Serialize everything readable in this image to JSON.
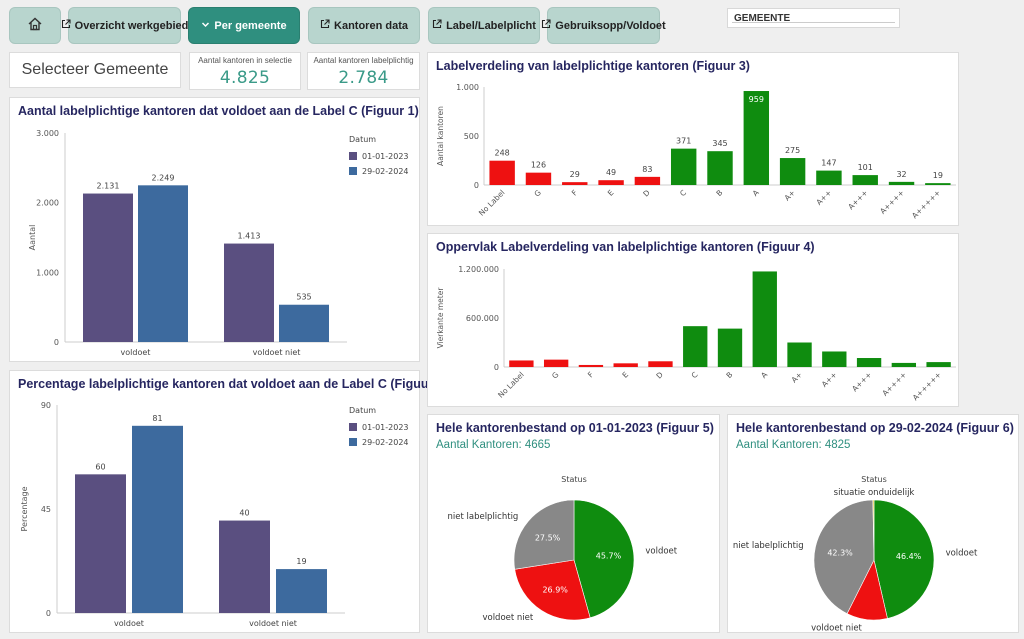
{
  "nav": {
    "buttons": [
      {
        "label": "",
        "icon": "home-icon"
      },
      {
        "label": "Overzicht werkgebied",
        "icon": "external-link-icon"
      },
      {
        "label": "Per gemeente",
        "icon": "chevron-down-icon"
      },
      {
        "label": "Kantoren data",
        "icon": "external-link-icon"
      },
      {
        "label": "Label/Labelplicht",
        "icon": "external-link-icon"
      },
      {
        "label": "Gebruiksopp/Voldoet",
        "icon": "external-link-icon"
      }
    ],
    "search_label": "GEMEENTE"
  },
  "select_label": "Selecteer Gemeente",
  "kpis": [
    {
      "label": "Aantal kantoren in selectie",
      "value": "4.825"
    },
    {
      "label": "Aantal kantoren labelplichtig",
      "value": "2.784"
    }
  ],
  "colors": {
    "s2023": "#5a4f80",
    "s2024": "#3d6a9e",
    "green": "#0f8c0f",
    "red": "#ee1111",
    "grey": "#888888",
    "accent": "#2f8f7f"
  },
  "chart_data": [
    {
      "id": "fig1",
      "type": "bar",
      "title": "Aantal labelplichtige kantoren dat voldoet aan de Label C (Figuur 1)",
      "ylabel": "Aantal",
      "ylim": [
        0,
        3000
      ],
      "yticks": [
        {
          "v": 0,
          "label": "0"
        },
        {
          "v": 1000,
          "label": "1.000"
        },
        {
          "v": 2000,
          "label": "2.000"
        },
        {
          "v": 3000,
          "label": "3.000"
        }
      ],
      "categories": [
        "voldoet",
        "voldoet niet"
      ],
      "legend_title": "Datum",
      "series": [
        {
          "name": "01-01-2023",
          "color": "#5a4f80",
          "values": [
            2131,
            1413
          ],
          "labels": [
            "2.131",
            "1.413"
          ]
        },
        {
          "name": "29-02-2024",
          "color": "#3d6a9e",
          "values": [
            2249,
            535
          ],
          "labels": [
            "2.249",
            "535"
          ]
        }
      ]
    },
    {
      "id": "fig2",
      "type": "bar",
      "title": "Percentage labelplichtige kantoren dat voldoet aan de Label C (Figuu...",
      "ylabel": "Percentage",
      "ylim": [
        0,
        90
      ],
      "yticks": [
        {
          "v": 0,
          "label": "0"
        },
        {
          "v": 45,
          "label": "45"
        },
        {
          "v": 90,
          "label": "90"
        }
      ],
      "categories": [
        "voldoet",
        "voldoet niet"
      ],
      "legend_title": "Datum",
      "series": [
        {
          "name": "01-01-2023",
          "color": "#5a4f80",
          "values": [
            60,
            40
          ],
          "labels": [
            "60",
            "40"
          ]
        },
        {
          "name": "29-02-2024",
          "color": "#3d6a9e",
          "values": [
            81,
            19
          ],
          "labels": [
            "81",
            "19"
          ]
        }
      ]
    },
    {
      "id": "fig3",
      "type": "bar",
      "title": "Labelverdeling van labelplichtige kantoren (Figuur 3)",
      "ylabel": "Aantal kantoren",
      "ylim": [
        0,
        1000
      ],
      "yticks": [
        {
          "v": 0,
          "label": "0"
        },
        {
          "v": 500,
          "label": "500"
        },
        {
          "v": 1000,
          "label": "1.000"
        }
      ],
      "categories": [
        "No Label",
        "G",
        "F",
        "E",
        "D",
        "C",
        "B",
        "A",
        "A+",
        "A++",
        "A+++",
        "A++++",
        "A+++++"
      ],
      "values": [
        248,
        126,
        29,
        49,
        83,
        371,
        345,
        959,
        275,
        147,
        101,
        32,
        19
      ],
      "labels": [
        "248",
        "126",
        "29",
        "49",
        "83",
        "371",
        "345",
        "959",
        "275",
        "147",
        "101",
        "32",
        "19"
      ],
      "colors": [
        "#ee1111",
        "#ee1111",
        "#ee1111",
        "#ee1111",
        "#ee1111",
        "#0f8c0f",
        "#0f8c0f",
        "#0f8c0f",
        "#0f8c0f",
        "#0f8c0f",
        "#0f8c0f",
        "#0f8c0f",
        "#0f8c0f"
      ]
    },
    {
      "id": "fig4",
      "type": "bar",
      "title": "Oppervlak Labelverdeling van labelplichtige kantoren (Figuur 4)",
      "ylabel": "Vierkante meter",
      "ylim": [
        0,
        1200000
      ],
      "yticks": [
        {
          "v": 0,
          "label": "0"
        },
        {
          "v": 600000,
          "label": "600.000"
        },
        {
          "v": 1200000,
          "label": "1.200.000"
        }
      ],
      "categories": [
        "No Label",
        "G",
        "F",
        "E",
        "D",
        "C",
        "B",
        "A",
        "A+",
        "A++",
        "A+++",
        "A++++",
        "A+++++"
      ],
      "values": [
        80000,
        90000,
        25000,
        45000,
        70000,
        500000,
        470000,
        1170000,
        300000,
        190000,
        110000,
        50000,
        60000
      ],
      "colors": [
        "#ee1111",
        "#ee1111",
        "#ee1111",
        "#ee1111",
        "#ee1111",
        "#0f8c0f",
        "#0f8c0f",
        "#0f8c0f",
        "#0f8c0f",
        "#0f8c0f",
        "#0f8c0f",
        "#0f8c0f",
        "#0f8c0f"
      ]
    },
    {
      "id": "fig5",
      "type": "pie",
      "title": "Hele kantorenbestand op 01-01-2023 (Figuur 5)",
      "subtitle": "Aantal Kantoren: 4665",
      "legend_title": "Status",
      "slices": [
        {
          "name": "voldoet",
          "value": 45.7,
          "label": "45.7%",
          "color": "#0f8c0f"
        },
        {
          "name": "voldoet niet",
          "value": 26.9,
          "label": "26.9%",
          "color": "#ee1111"
        },
        {
          "name": "niet labelplichtig",
          "value": 27.5,
          "label": "27.5%",
          "color": "#888888"
        }
      ]
    },
    {
      "id": "fig6",
      "type": "pie",
      "title": "Hele kantorenbestand op 29-02-2024 (Figuur 6)",
      "subtitle": "Aantal Kantoren: 4825",
      "legend_title": "Status",
      "slices": [
        {
          "name": "voldoet",
          "value": 46.4,
          "label": "46.4%",
          "color": "#0f8c0f"
        },
        {
          "name": "voldoet niet",
          "value": 11.0,
          "label": "",
          "color": "#ee1111"
        },
        {
          "name": "niet labelplichtig",
          "value": 42.3,
          "label": "42.3%",
          "color": "#888888"
        },
        {
          "name": "situatie onduidelijk",
          "value": 0.3,
          "label": "",
          "color": "#e8c000"
        }
      ]
    }
  ]
}
